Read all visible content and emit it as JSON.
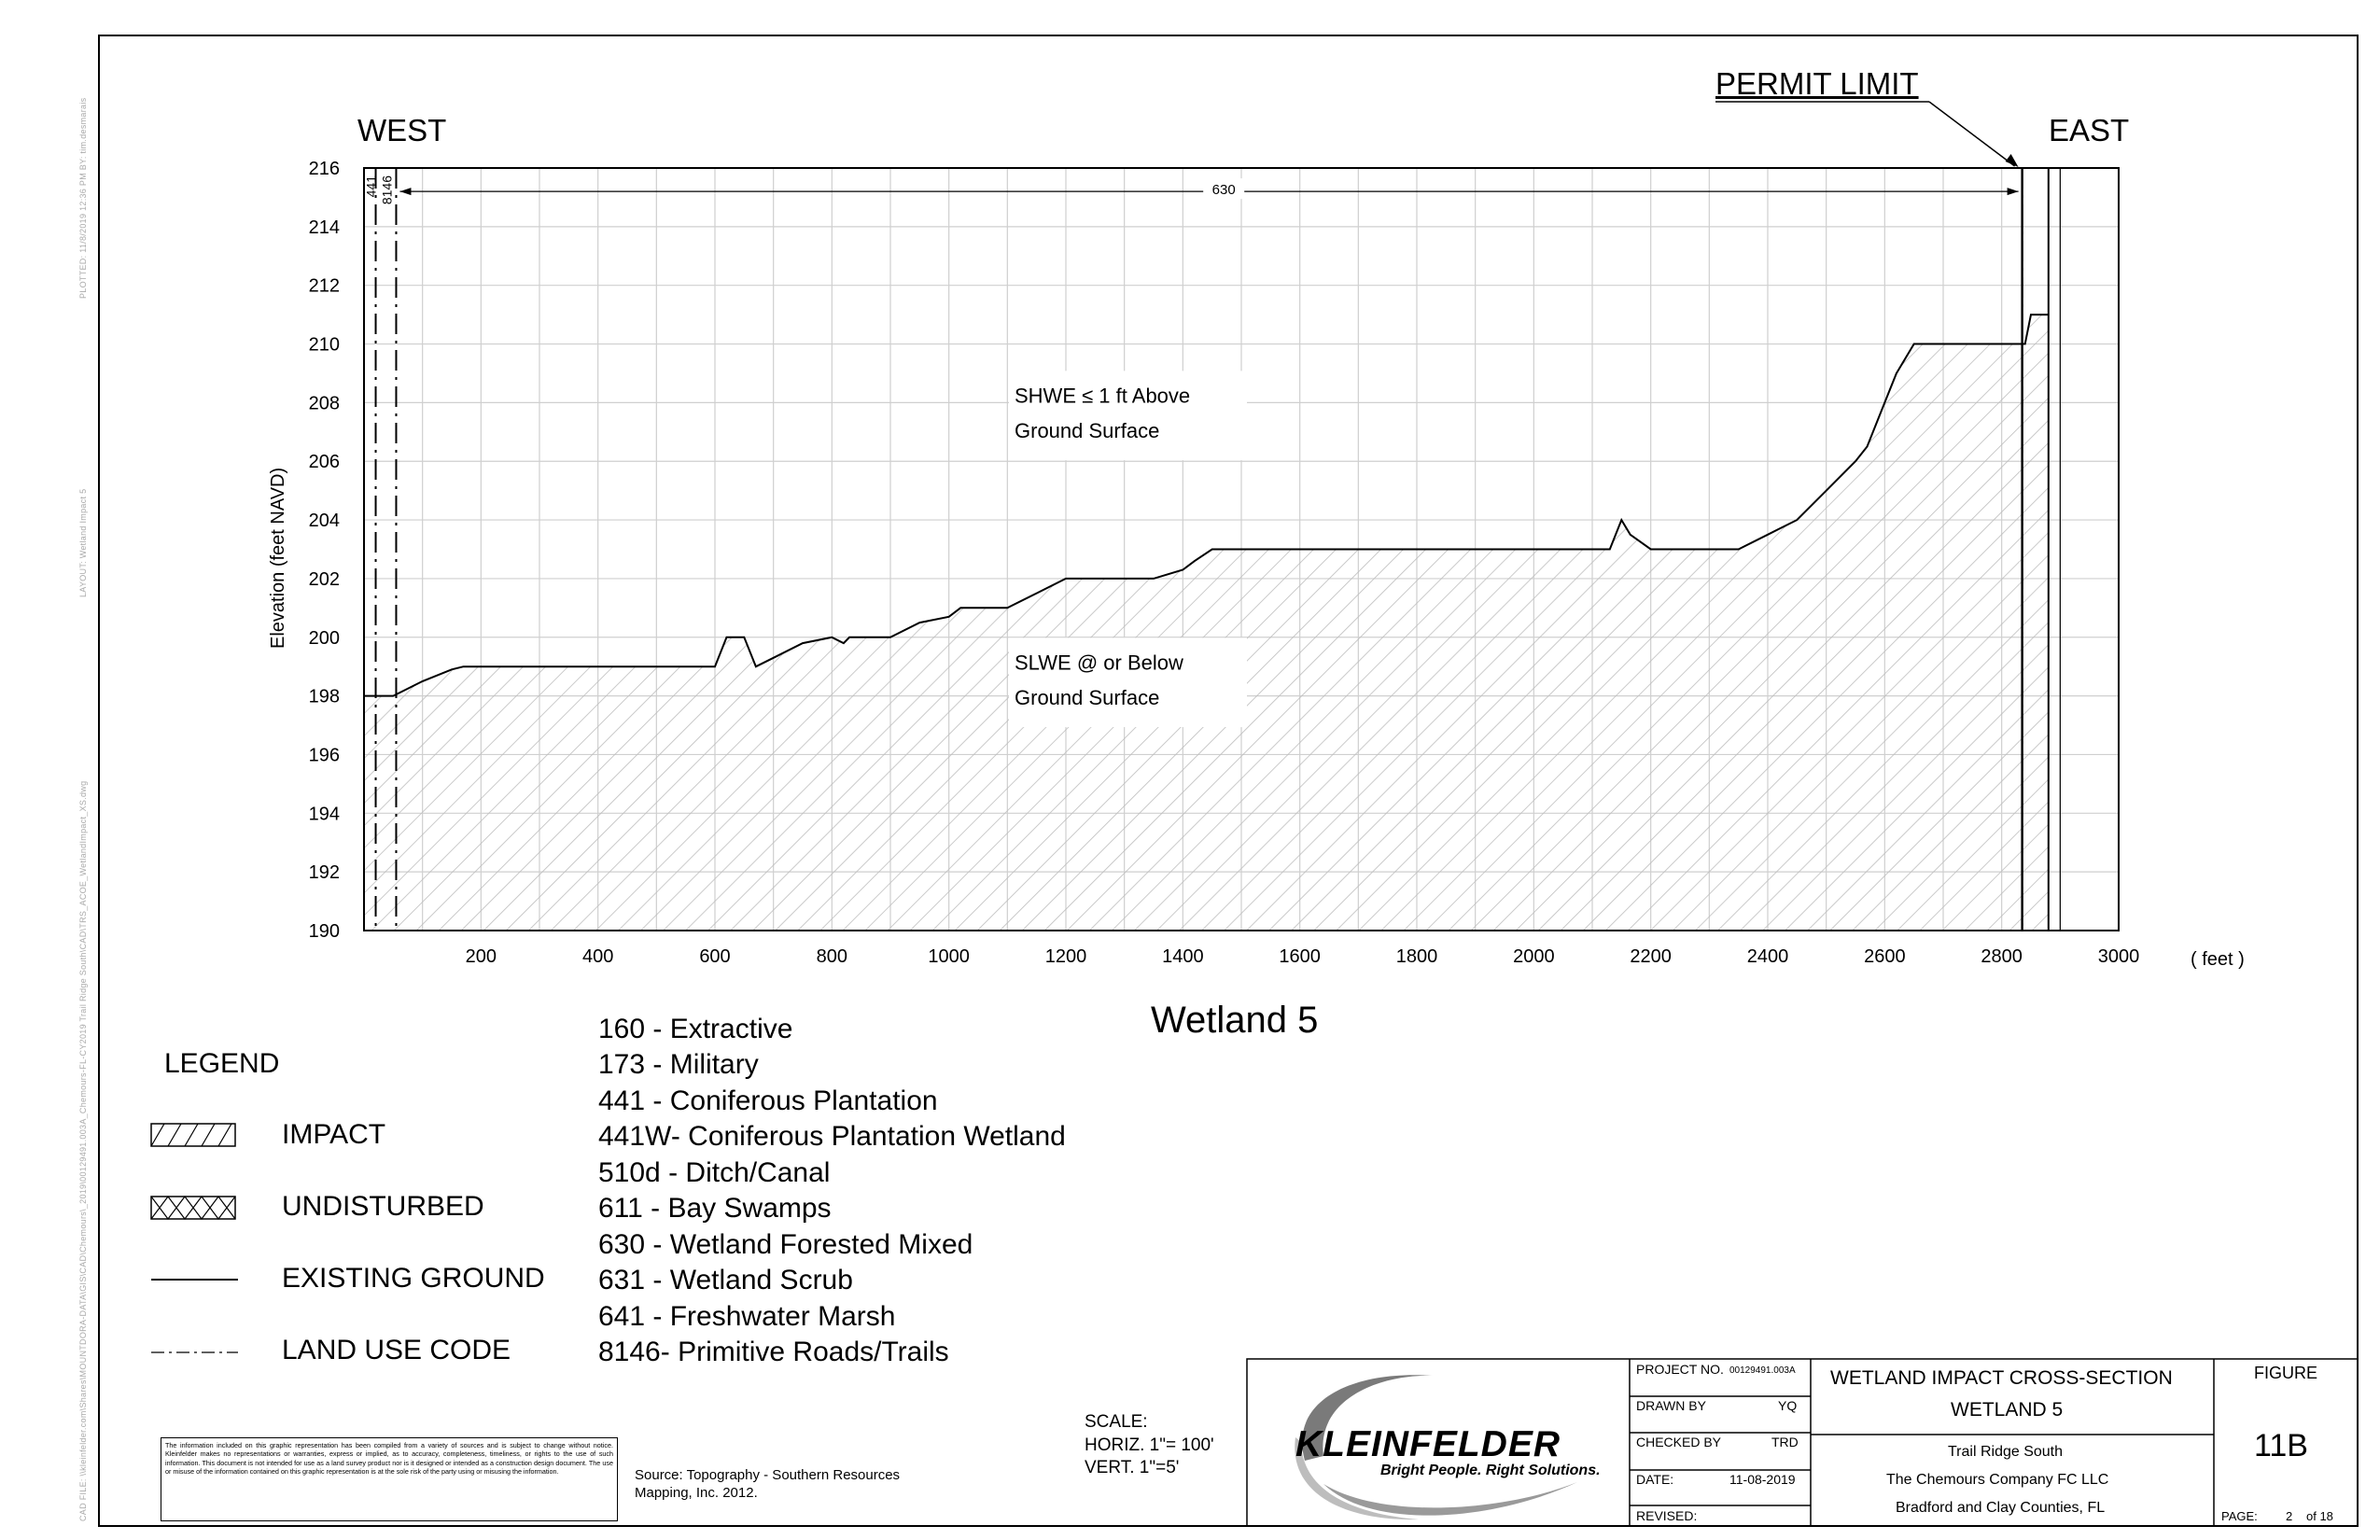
{
  "chart_data": {
    "type": "area",
    "title": "Wetland 5",
    "xlabel": "( feet )",
    "ylabel": "Elevation (feet NAVD)",
    "xlim": [
      0,
      3000
    ],
    "ylim": [
      190,
      216
    ],
    "xticks": [
      200,
      400,
      600,
      800,
      1000,
      1200,
      1400,
      1600,
      1800,
      2000,
      2200,
      2400,
      2600,
      2800,
      3000
    ],
    "yticks": [
      190,
      192,
      194,
      196,
      198,
      200,
      202,
      204,
      206,
      208,
      210,
      212,
      214,
      216
    ],
    "grid": true,
    "series": [
      {
        "name": "EXISTING GROUND",
        "x": [
          0,
          50,
          100,
          150,
          170,
          200,
          300,
          400,
          500,
          600,
          620,
          650,
          670,
          700,
          750,
          800,
          820,
          830,
          900,
          950,
          1000,
          1020,
          1050,
          1100,
          1150,
          1200,
          1250,
          1270,
          1300,
          1350,
          1400,
          1420,
          1450,
          1500,
          1600,
          1800,
          2000,
          2100,
          2130,
          2150,
          2165,
          2200,
          2250,
          2300,
          2350,
          2400,
          2450,
          2500,
          2550,
          2570,
          2600,
          2620,
          2650,
          2700,
          2800,
          2840,
          2850,
          2880
        ],
        "y": [
          198,
          198,
          198.5,
          198.9,
          199,
          199,
          199,
          199,
          199,
          199,
          200,
          200,
          199,
          199.3,
          199.8,
          200,
          199.8,
          200,
          200,
          200.5,
          200.7,
          201,
          201,
          201,
          201.5,
          202,
          202,
          202,
          202,
          202,
          202.3,
          202.6,
          203,
          203,
          203,
          203,
          203,
          203,
          203,
          204,
          203.5,
          203,
          203,
          203,
          203,
          203.5,
          204,
          205,
          206,
          206.5,
          208,
          209,
          210,
          210,
          210,
          210,
          211,
          211
        ]
      }
    ],
    "annotations": [
      {
        "text": "630",
        "x": 1470,
        "y": 215.2
      },
      {
        "text": "SHWE ≤ 1 ft Above",
        "x": 1200,
        "y": 208
      },
      {
        "text": "Ground Surface",
        "x": 1200,
        "y": 206.8
      },
      {
        "text": "SLWE @ or Below",
        "x": 1200,
        "y": 198.9
      },
      {
        "text": "Ground Surface",
        "x": 1200,
        "y": 197.7
      }
    ],
    "land_use_boundaries": [
      {
        "code": "441",
        "from": 0,
        "to": 20
      },
      {
        "code": "8146",
        "from": 20,
        "to": 55
      },
      {
        "code": "630",
        "from": 55,
        "to": 2835
      }
    ],
    "permit_limit_x": 2835
  },
  "headers": {
    "west": "WEST",
    "east": "EAST",
    "permit_limit": "PERMIT LIMIT"
  },
  "legend": {
    "title": "LEGEND",
    "items": [
      {
        "label": "IMPACT",
        "symbol": "diagonal-hatch"
      },
      {
        "label": "UNDISTURBED",
        "symbol": "cross-hatch"
      },
      {
        "label": "EXISTING GROUND",
        "symbol": "solid-line"
      },
      {
        "label": "LAND USE CODE",
        "symbol": "dash-dot-line"
      }
    ]
  },
  "land_use_codes": [
    "160 - Extractive",
    "173 - Military",
    "441 - Coniferous Plantation",
    "441W- Coniferous Plantation Wetland",
    "510d - Ditch/Canal",
    "611 - Bay Swamps",
    "630 - Wetland Forested Mixed",
    "631 - Wetland Scrub",
    "641 - Freshwater Marsh",
    "8146- Primitive Roads/Trails"
  ],
  "scale": {
    "label": "SCALE:",
    "horiz": "HORIZ. 1\"= 100'",
    "vert": "VERT. 1\"=5'"
  },
  "source_note": "Source: Topography - Southern Resources Mapping, Inc. 2012.",
  "disclaimer": "The information included on this graphic representation has been compiled from a variety of sources and is subject to change without notice. Kleinfelder makes no representations or warranties, express or implied, as to accuracy, completeness, timeliness, or rights to the use of such information. This document is not intended for use as a land survey product nor is it designed or intended as a construction design document. The use or misuse of the information contained on this graphic representation is at the sole risk of the party using or misusing the information.",
  "logo": {
    "name": "KLEINFELDER",
    "tagline": "Bright People. Right Solutions."
  },
  "title_block": {
    "project_no_label": "PROJECT NO.",
    "project_no": "00129491.003A",
    "drawn_by_label": "DRAWN BY",
    "drawn_by": "YQ",
    "checked_by_label": "CHECKED BY",
    "checked_by": "TRD",
    "date_label": "DATE:",
    "date": "11-08-2019",
    "revised_label": "REVISED:",
    "title_line1": "WETLAND IMPACT CROSS-SECTION",
    "title_line2": "WETLAND 5",
    "project_name": "Trail Ridge South",
    "client": "The Chemours Company FC LLC",
    "location": "Bradford and Clay Counties, FL",
    "figure_label": "FIGURE",
    "figure_no": "11B",
    "page_label": "PAGE:",
    "page_no": "2",
    "page_of": "of 18"
  },
  "margin_text": {
    "plotted": "PLOTTED:    11/8/2019 12:36 PM   BY: tim.desmarais",
    "layout": "LAYOUT:   Wetland Impact 5",
    "cad_file": "CAD FILE:   \\\\kleinfelder.com\\Shares\\MOUNTDORA-DATA\\GIS\\CAD\\Chemours\\_2019\\00129491.003A_Chemours-FL-CY2019 Trail Ridge South\\CAD\\TRS_ACOE_WetlandImpact_XS.dwg"
  }
}
